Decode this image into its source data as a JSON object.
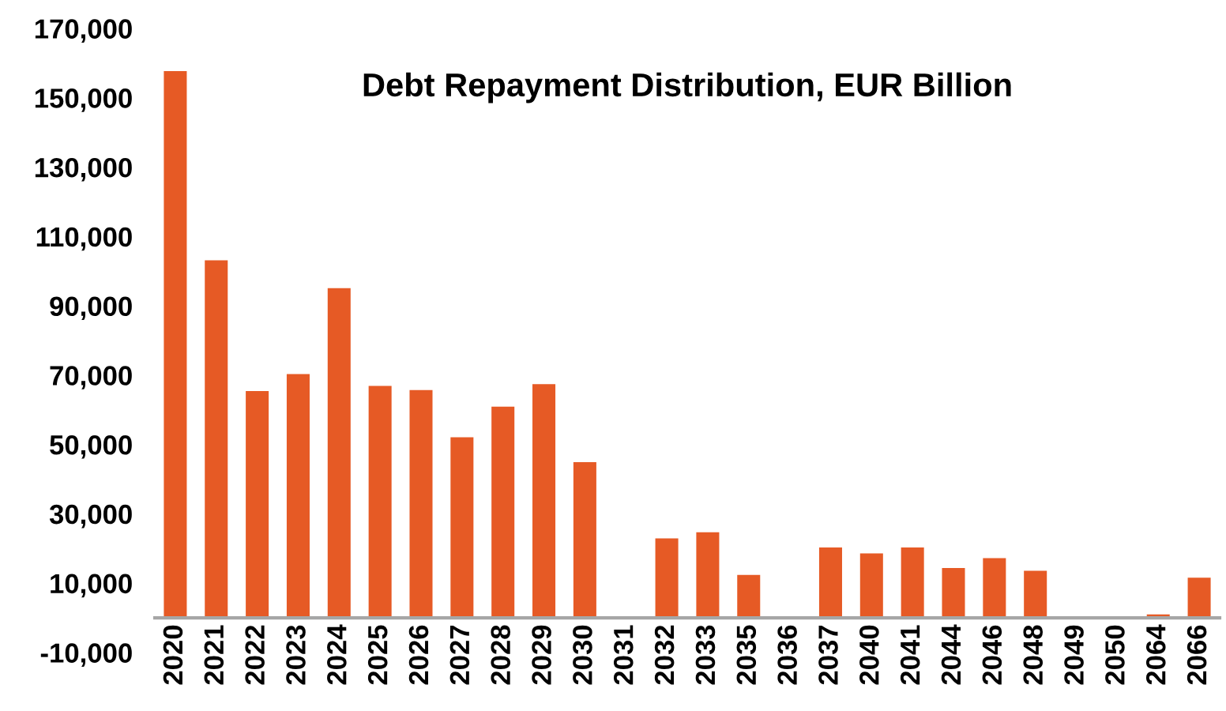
{
  "chart_data": {
    "type": "bar",
    "title": "Debt Repayment Distribution, EUR Billion",
    "categories": [
      "2020",
      "2021",
      "2022",
      "2023",
      "2024",
      "2025",
      "2026",
      "2027",
      "2028",
      "2029",
      "2030",
      "2031",
      "2032",
      "2033",
      "2035",
      "2036",
      "2037",
      "2040",
      "2041",
      "2044",
      "2046",
      "2048",
      "2049",
      "2050",
      "2064",
      "2066"
    ],
    "values": [
      157700,
      103100,
      65400,
      70300,
      95100,
      66900,
      65700,
      52100,
      60900,
      67400,
      44900,
      0,
      22900,
      24700,
      12400,
      300,
      20300,
      18600,
      20300,
      14400,
      17200,
      13600,
      200,
      200,
      1000,
      11600
    ],
    "color": "#e65a25",
    "ylim": [
      -10000,
      170000
    ],
    "yticks": [
      {
        "value": -10000,
        "label": "-10,000"
      },
      {
        "value": 10000,
        "label": "10,000"
      },
      {
        "value": 30000,
        "label": "30,000"
      },
      {
        "value": 50000,
        "label": "50,000"
      },
      {
        "value": 70000,
        "label": "70,000"
      },
      {
        "value": 90000,
        "label": "90,000"
      },
      {
        "value": 110000,
        "label": "110,000"
      },
      {
        "value": 130000,
        "label": "130,000"
      },
      {
        "value": 150000,
        "label": "150,000"
      },
      {
        "value": 170000,
        "label": "170,000"
      }
    ],
    "grid": false,
    "legend": false
  }
}
